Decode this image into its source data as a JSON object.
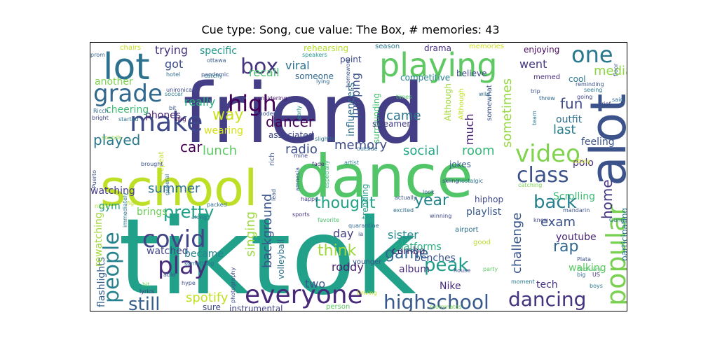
{
  "title": "Cue type: Song, cue value: The Box, # memories: 43",
  "chart_data": {
    "type": "wordcloud",
    "title": "Cue type: Song, cue value: The Box, # memories: 43",
    "words": [
      {
        "text": "tiktok",
        "color": "#21a08a"
      },
      {
        "text": "friend",
        "color": "#433e85"
      },
      {
        "text": "school",
        "color": "#bddf26"
      },
      {
        "text": "dance",
        "color": "#52c569"
      },
      {
        "text": "alot",
        "color": "#3b528b"
      },
      {
        "text": "lot",
        "color": "#2c728e"
      },
      {
        "text": "playing",
        "color": "#5ec962"
      },
      {
        "text": "grade",
        "color": "#31688e"
      },
      {
        "text": "make",
        "color": "#3e4989"
      },
      {
        "text": "box",
        "color": "#46337e"
      },
      {
        "text": "one",
        "color": "#2a788e"
      },
      {
        "text": "high",
        "color": "#440154"
      },
      {
        "text": "popular",
        "color": "#7ad151"
      },
      {
        "text": "video",
        "color": "#7fd34e"
      },
      {
        "text": "class",
        "color": "#3b528b"
      },
      {
        "text": "everyone",
        "color": "#482878"
      },
      {
        "text": "covid",
        "color": "#414487"
      },
      {
        "text": "play",
        "color": "#472d7b"
      },
      {
        "text": "people",
        "color": "#26828e"
      },
      {
        "text": "highschool",
        "color": "#38598c"
      },
      {
        "text": "dancing",
        "color": "#46337e"
      },
      {
        "text": "still",
        "color": "#355f8d"
      },
      {
        "text": "back",
        "color": "#26818e"
      },
      {
        "text": "pretty",
        "color": "#1fa187"
      },
      {
        "text": "summer",
        "color": "#2d708e"
      },
      {
        "text": "thought",
        "color": "#20a386"
      },
      {
        "text": "year",
        "color": "#25848e"
      },
      {
        "text": "think",
        "color": "#9dd93b"
      },
      {
        "text": "game",
        "color": "#2f6c8e"
      },
      {
        "text": "peak",
        "color": "#1e9c89"
      },
      {
        "text": "rap",
        "color": "#31668e"
      },
      {
        "text": "home",
        "color": "#453781"
      },
      {
        "text": "exam",
        "color": "#3b528b"
      },
      {
        "text": "fun",
        "color": "#3e4a89"
      },
      {
        "text": "last",
        "color": "#287c8e"
      },
      {
        "text": "way",
        "color": "#c8e020"
      },
      {
        "text": "played",
        "color": "#29798e"
      },
      {
        "text": "car",
        "color": "#440154"
      },
      {
        "text": "lunch",
        "color": "#5cc863"
      },
      {
        "text": "dancer",
        "color": "#440154"
      },
      {
        "text": "memory",
        "color": "#3e4a89"
      },
      {
        "text": "social",
        "color": "#22a785"
      },
      {
        "text": "room",
        "color": "#35b779"
      },
      {
        "text": "sometimes",
        "color": "#95d840"
      },
      {
        "text": "media",
        "color": "#8fd744"
      },
      {
        "text": "came",
        "color": "#2c738e"
      },
      {
        "text": "much",
        "color": "#482173"
      },
      {
        "text": "radio",
        "color": "#3d4e8a"
      },
      {
        "text": "recall",
        "color": "#48c16e"
      },
      {
        "text": "background",
        "color": "#3a548c"
      },
      {
        "text": "singing",
        "color": "#9bd93c"
      },
      {
        "text": "spotify",
        "color": "#c2df23"
      },
      {
        "text": "challenge",
        "color": "#39568c"
      },
      {
        "text": "sister",
        "color": "#24878e"
      },
      {
        "text": "album",
        "color": "#472c7a"
      },
      {
        "text": "day",
        "color": "#433e85"
      },
      {
        "text": "two",
        "color": "#39558c"
      },
      {
        "text": "roddy",
        "color": "#481f70"
      },
      {
        "text": "went",
        "color": "#453882"
      },
      {
        "text": "really",
        "color": "#29af7f"
      },
      {
        "text": "got",
        "color": "#3d4e8a"
      },
      {
        "text": "trying",
        "color": "#46327e"
      },
      {
        "text": "specific",
        "color": "#1f988b"
      },
      {
        "text": "viral",
        "color": "#2d718e"
      },
      {
        "text": "jumping",
        "color": "#3b528b"
      },
      {
        "text": "influencers",
        "color": "#2e6e8e"
      },
      {
        "text": "surrounding",
        "color": "#46c06f"
      },
      {
        "text": "watching",
        "color": "#443a83"
      },
      {
        "text": "gym",
        "color": "#1f9a8a"
      },
      {
        "text": "brings",
        "color": "#6ccd5a"
      },
      {
        "text": "watched",
        "color": "#414487"
      },
      {
        "text": "became",
        "color": "#25848e"
      },
      {
        "text": "phones",
        "color": "#482475"
      },
      {
        "text": "cheering",
        "color": "#3fbc73"
      },
      {
        "text": "outfit",
        "color": "#2e6f8e"
      },
      {
        "text": "feeling",
        "color": "#3b518b"
      },
      {
        "text": "polo",
        "color": "#472d7b"
      },
      {
        "text": "Scrolling",
        "color": "#3dbc74"
      },
      {
        "text": "youtube",
        "color": "#482475"
      },
      {
        "text": "participating",
        "color": "#2a788e"
      },
      {
        "text": "walking",
        "color": "#5ec962"
      },
      {
        "text": "tech",
        "color": "#46327e"
      },
      {
        "text": "Nike",
        "color": "#472a7a"
      },
      {
        "text": "playlist",
        "color": "#38588c"
      },
      {
        "text": "hiphop",
        "color": "#3e4989"
      },
      {
        "text": "combo",
        "color": "#481d6f"
      },
      {
        "text": "benches",
        "color": "#3a538b"
      },
      {
        "text": "jokes",
        "color": "#375b8d"
      },
      {
        "text": "platforms",
        "color": "#2ab07f"
      },
      {
        "text": "trending",
        "color": "#1f9e89"
      },
      {
        "text": "volleyball",
        "color": "#2b748e"
      },
      {
        "text": "instrumental",
        "color": "#404588"
      },
      {
        "text": "sure",
        "color": "#3e4989"
      },
      {
        "text": "flashlights",
        "color": "#355e8d"
      },
      {
        "text": "rewatching",
        "color": "#a2da37"
      },
      {
        "text": "another",
        "color": "#7cd250"
      },
      {
        "text": "wearing",
        "color": "#d8e219"
      },
      {
        "text": "associated",
        "color": "#3f4788"
      },
      {
        "text": "streamers",
        "color": "#423f85"
      },
      {
        "text": "someone",
        "color": "#31678e"
      },
      {
        "text": "point",
        "color": "#3e4989"
      },
      {
        "text": "competitive",
        "color": "#26818e"
      },
      {
        "text": "believe",
        "color": "#3f4889"
      },
      {
        "text": "drama",
        "color": "#472f7d"
      },
      {
        "text": "enjoying",
        "color": "#46085c"
      },
      {
        "text": "memed",
        "color": "#482979"
      },
      {
        "text": "cool",
        "color": "#297a8e"
      },
      {
        "text": "Although",
        "color": "#a0da39"
      },
      {
        "text": "somewhat",
        "color": "#3b528b"
      },
      {
        "text": "season",
        "color": "#2a778e"
      },
      {
        "text": "rehearsing",
        "color": "#b5de2b"
      },
      {
        "text": "memories",
        "color": "#d0e11c"
      },
      {
        "text": "chairs",
        "color": "#c5e021"
      },
      {
        "text": "prom",
        "color": "#35608d"
      },
      {
        "text": "ottawa",
        "color": "#38588c"
      },
      {
        "text": "speakers",
        "color": "#1f948c"
      },
      {
        "text": "unironically",
        "color": "#3f4889"
      },
      {
        "text": "considering",
        "color": "#481a6c"
      },
      {
        "text": "pandemic",
        "color": "#3b528b"
      },
      {
        "text": "catchy",
        "color": "#2a768e"
      },
      {
        "text": "lying",
        "color": "#31678e"
      },
      {
        "text": "hotel",
        "color": "#2e6e8e"
      },
      {
        "text": "soccer",
        "color": "#29798e"
      },
      {
        "text": "bit",
        "color": "#38588c"
      },
      {
        "text": "early",
        "color": "#21918c"
      },
      {
        "text": "modern",
        "color": "#3b528b"
      },
      {
        "text": "sing",
        "color": "#440154"
      },
      {
        "text": "repeat",
        "color": "#c2df23"
      },
      {
        "text": "slightly",
        "color": "#2e6e8e"
      },
      {
        "text": "started",
        "color": "#2c728e"
      },
      {
        "text": "sounds",
        "color": "#93d741"
      },
      {
        "text": "brought",
        "color": "#3b528b"
      },
      {
        "text": "general",
        "color": "#2d708e"
      },
      {
        "text": "rich",
        "color": "#39568c"
      },
      {
        "text": "mine",
        "color": "#3f4788"
      },
      {
        "text": "outside",
        "color": "#2e6e8e"
      },
      {
        "text": "artist",
        "color": "#27808e"
      },
      {
        "text": "fade",
        "color": "#46337e"
      },
      {
        "text": "especially",
        "color": "#35b779"
      },
      {
        "text": "amnesia",
        "color": "#3b528b"
      },
      {
        "text": "happy",
        "color": "#414487"
      },
      {
        "text": "packed",
        "color": "#2e6e8e"
      },
      {
        "text": "along",
        "color": "#2a788e"
      },
      {
        "text": "sports",
        "color": "#46327e"
      },
      {
        "text": "favorite",
        "color": "#4ac16d"
      },
      {
        "text": "quarantine",
        "color": "#31688e"
      },
      {
        "text": "photography",
        "color": "#3d4d8a"
      },
      {
        "text": "lead",
        "color": "#38588c"
      },
      {
        "text": "something",
        "color": "#2d708e"
      },
      {
        "text": "hype",
        "color": "#3e4a89"
      },
      {
        "text": "able",
        "color": "#3b528b"
      },
      {
        "text": "hit",
        "color": "#6ece58"
      },
      {
        "text": "lyrics",
        "color": "#453882"
      },
      {
        "text": "immediately",
        "color": "#2a788e"
      },
      {
        "text": "Puerto",
        "color": "#3b528b"
      },
      {
        "text": "Ricch",
        "color": "#31688e"
      },
      {
        "text": "bright",
        "color": "#404588"
      },
      {
        "text": "night",
        "color": "#a8db34"
      },
      {
        "text": "ia",
        "color": "#3b528b"
      },
      {
        "text": "younger",
        "color": "#39568c"
      },
      {
        "text": "person",
        "color": "#5ec962"
      },
      {
        "text": "good",
        "color": "#b8de29"
      },
      {
        "text": "house",
        "color": "#3e4989"
      },
      {
        "text": "airport",
        "color": "#2d708e"
      },
      {
        "text": "Driving",
        "color": "#c0df25"
      },
      {
        "text": "roommates",
        "color": "#7ad151"
      },
      {
        "text": "moment",
        "color": "#2a788e"
      },
      {
        "text": "Plata",
        "color": "#3b528b"
      },
      {
        "text": "February",
        "color": "#52c569"
      },
      {
        "text": "big",
        "color": "#2e6e8e"
      },
      {
        "text": "US",
        "color": "#472d7b"
      },
      {
        "text": "boys",
        "color": "#2a788e"
      },
      {
        "text": "knew",
        "color": "#404588"
      },
      {
        "text": "mandarin",
        "color": "#3b528b"
      },
      {
        "text": "Gunna",
        "color": "#2a788e"
      },
      {
        "text": "party",
        "color": "#5ec962"
      },
      {
        "text": "excited",
        "color": "#2e6e8e"
      },
      {
        "text": "winning",
        "color": "#3e4989"
      },
      {
        "text": "look",
        "color": "#35608d"
      },
      {
        "text": "actually",
        "color": "#3b528b"
      },
      {
        "text": "nostalgic",
        "color": "#2d708e"
      },
      {
        "text": "skiing",
        "color": "#3e4989"
      },
      {
        "text": "catching",
        "color": "#7ad151"
      },
      {
        "text": "sitting",
        "color": "#c8e020"
      },
      {
        "text": "seeing",
        "color": "#2a788e"
      },
      {
        "text": "reminding",
        "color": "#3b528b"
      },
      {
        "text": "going",
        "color": "#404588"
      },
      {
        "text": "said",
        "color": "#2e6e8e"
      },
      {
        "text": "trip",
        "color": "#3b528b"
      },
      {
        "text": "threw",
        "color": "#31688e"
      },
      {
        "text": "team",
        "color": "#2a788e"
      },
      {
        "text": "brief",
        "color": "#3e4989"
      },
      {
        "text": "homework",
        "color": "#3b528b"
      },
      {
        "text": "times",
        "color": "#52c569"
      },
      {
        "text": "wild",
        "color": "#2e6e8e"
      },
      {
        "text": "floor",
        "color": "#3b528b"
      },
      {
        "text": "fight",
        "color": "#b8de29"
      },
      {
        "text": "Although",
        "color": "#c2df23"
      }
    ]
  }
}
